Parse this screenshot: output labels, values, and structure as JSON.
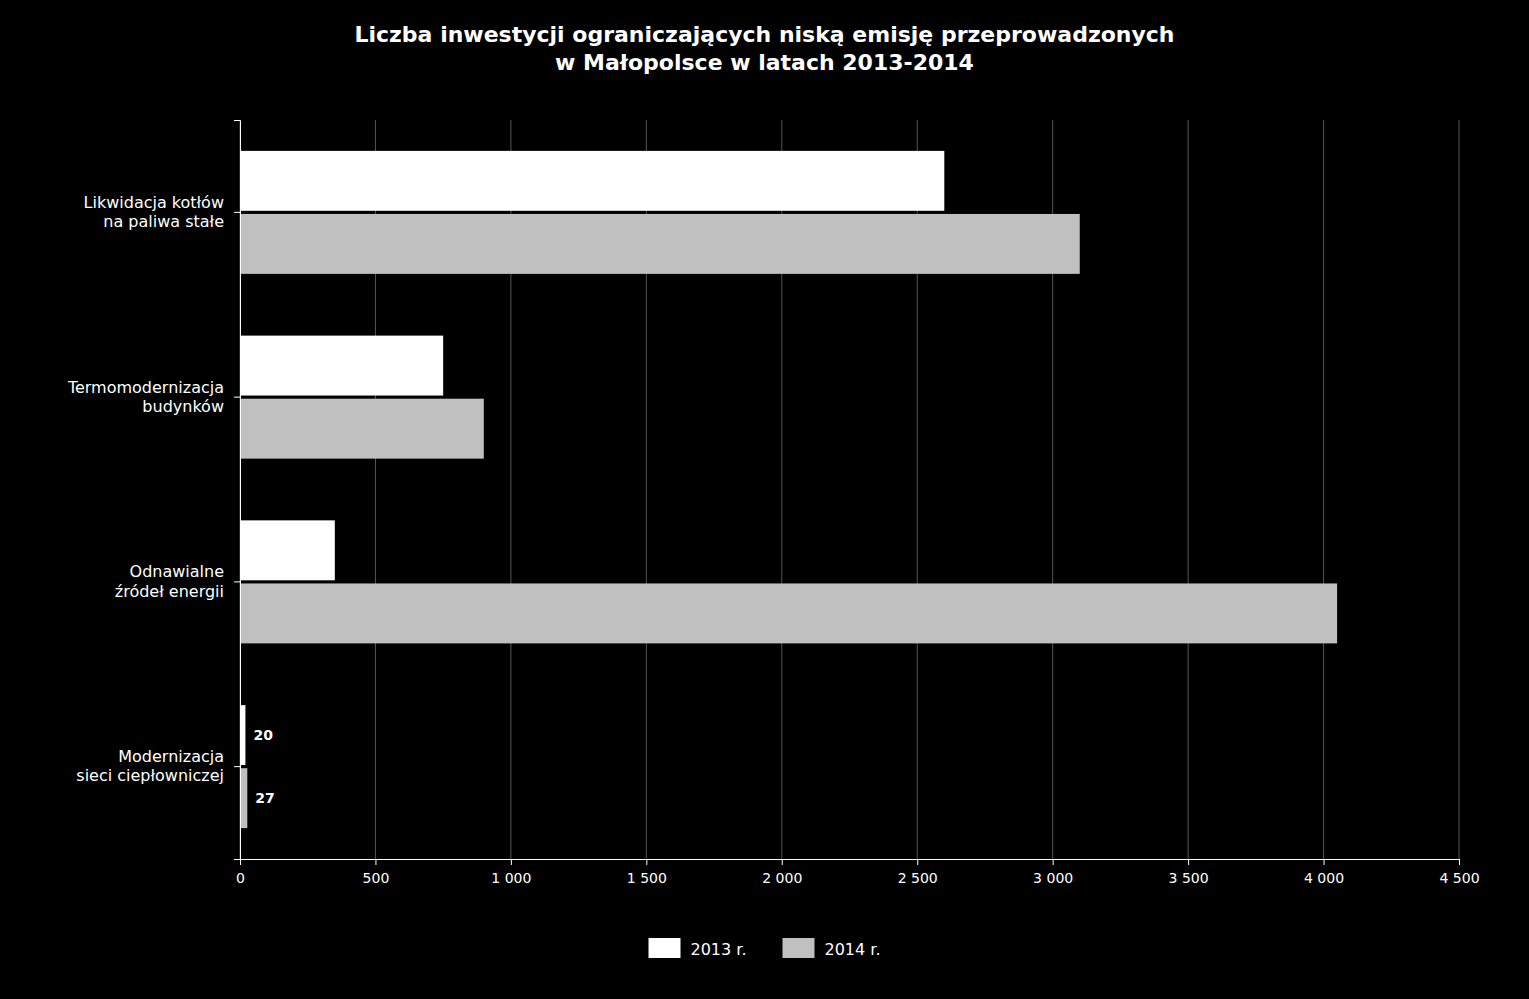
{
  "chart_data": {
    "type": "bar",
    "orientation": "horizontal",
    "title": "Liczba inwestycji ograniczających niską emisję przeprowadzonych\nw Małopolsce w latach 2013-2014",
    "categories": [
      "Modernizacja\nsieci ciepłowniczej",
      "Odnawialne\nźródeł energii",
      "Termomodernizacja\nbudynków",
      "Likwidacja kotłów\nna paliwa stałe"
    ],
    "series": [
      {
        "name": "2013 r.",
        "color": "#ffffff",
        "values": [
          20,
          350,
          750,
          2600
        ],
        "value_labels": [
          "20",
          null,
          null,
          null
        ]
      },
      {
        "name": "2014 r.",
        "color": "#c0c0c0",
        "values": [
          27,
          4050,
          900,
          3100
        ],
        "value_labels": [
          "27",
          null,
          null,
          null
        ]
      }
    ],
    "xlim": [
      0,
      4500
    ],
    "xticks": [
      0,
      500,
      {
        "value": 1000,
        "label": "1 000"
      },
      {
        "value": 1500,
        "label": "1 500"
      },
      {
        "value": 2000,
        "label": "2 000"
      },
      {
        "value": 2500,
        "label": "2 500"
      },
      {
        "value": 3000,
        "label": "3 000"
      },
      {
        "value": 3500,
        "label": "3 500"
      },
      {
        "value": 4000,
        "label": "4 000"
      },
      {
        "value": 4500,
        "label": "4 500"
      }
    ],
    "grid": true,
    "legend": "bottom"
  }
}
